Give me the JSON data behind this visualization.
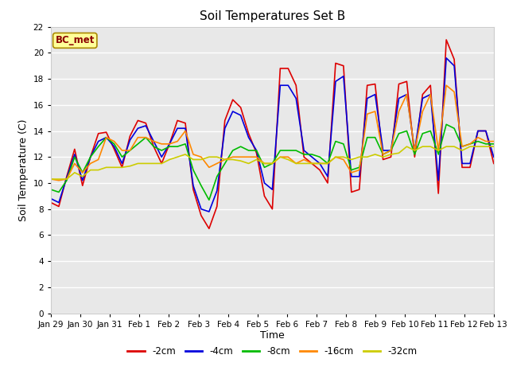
{
  "title": "Soil Temperatures Set B",
  "xlabel": "Time",
  "ylabel": "Soil Temperature (C)",
  "ylim": [
    0,
    22
  ],
  "yticks": [
    0,
    2,
    4,
    6,
    8,
    10,
    12,
    14,
    16,
    18,
    20,
    22
  ],
  "fig_bg_color": "#ffffff",
  "plot_bg_color": "#e8e8e8",
  "legend_label": "BC_met",
  "legend_box_facecolor": "#ffff99",
  "legend_box_edgecolor": "#aa8800",
  "legend_text_color": "#8b0000",
  "series_labels": [
    "-2cm",
    "-4cm",
    "-8cm",
    "-16cm",
    "-32cm"
  ],
  "series_colors": [
    "#dd0000",
    "#0000dd",
    "#00bb00",
    "#ff8800",
    "#cccc00"
  ],
  "x_labels": [
    "Jan 29",
    "Jan 30",
    "Jan 31",
    "Feb 1",
    "Feb 2",
    "Feb 3",
    "Feb 4",
    "Feb 5",
    "Feb 6",
    "Feb 7",
    "Feb 8",
    "Feb 9",
    "Feb 10",
    "Feb 11",
    "Feb 12",
    "Feb 13"
  ],
  "data_2cm": [
    8.5,
    8.2,
    10.5,
    12.6,
    9.8,
    12.0,
    13.8,
    13.9,
    12.6,
    11.2,
    13.6,
    14.8,
    14.6,
    12.8,
    11.5,
    13.0,
    14.8,
    14.6,
    9.5,
    7.5,
    6.5,
    8.2,
    14.8,
    16.4,
    15.8,
    13.8,
    12.3,
    9.0,
    8.0,
    18.8,
    18.8,
    17.5,
    12.0,
    11.5,
    11.0,
    10.0,
    19.2,
    19.0,
    9.3,
    9.5,
    17.5,
    17.6,
    11.8,
    12.0,
    17.6,
    17.8,
    12.0,
    16.8,
    17.5,
    9.2,
    21.0,
    19.5,
    11.2,
    11.2,
    14.0,
    14.0,
    11.5
  ],
  "data_4cm": [
    8.8,
    8.5,
    10.4,
    12.2,
    10.2,
    12.0,
    13.2,
    13.5,
    12.8,
    11.5,
    13.3,
    14.2,
    14.4,
    13.2,
    12.0,
    13.0,
    14.2,
    14.2,
    9.8,
    8.0,
    7.8,
    9.4,
    14.2,
    15.5,
    15.2,
    13.5,
    12.5,
    10.0,
    9.5,
    17.5,
    17.5,
    16.5,
    12.5,
    12.0,
    11.5,
    10.5,
    17.8,
    18.2,
    10.5,
    10.5,
    16.5,
    16.8,
    12.5,
    12.5,
    16.5,
    16.8,
    12.5,
    16.5,
    16.8,
    10.2,
    19.6,
    19.0,
    11.5,
    11.5,
    14.0,
    14.0,
    12.0
  ],
  "data_8cm": [
    9.5,
    9.3,
    10.2,
    12.0,
    10.8,
    12.0,
    12.8,
    13.5,
    13.0,
    12.0,
    12.5,
    13.0,
    13.5,
    12.8,
    12.5,
    12.8,
    12.8,
    13.0,
    11.0,
    9.8,
    8.7,
    10.5,
    11.5,
    12.5,
    12.8,
    12.5,
    12.5,
    11.2,
    11.5,
    12.5,
    12.5,
    12.5,
    12.2,
    12.2,
    12.0,
    11.5,
    13.2,
    13.0,
    11.0,
    11.2,
    13.5,
    13.5,
    12.2,
    12.5,
    13.8,
    14.0,
    12.2,
    13.8,
    14.0,
    12.2,
    14.5,
    14.2,
    12.8,
    13.0,
    13.2,
    13.0,
    13.0
  ],
  "data_16cm": [
    10.3,
    10.2,
    10.3,
    11.5,
    10.8,
    11.5,
    11.8,
    13.5,
    13.2,
    12.5,
    12.5,
    13.5,
    13.5,
    13.2,
    13.0,
    13.0,
    13.2,
    14.0,
    12.2,
    12.0,
    11.2,
    11.5,
    11.8,
    12.0,
    12.0,
    12.0,
    12.0,
    11.5,
    11.5,
    12.0,
    12.0,
    11.5,
    11.8,
    11.5,
    11.5,
    11.5,
    12.0,
    11.8,
    10.8,
    11.0,
    15.3,
    15.5,
    12.2,
    12.5,
    15.5,
    16.8,
    12.5,
    15.5,
    16.8,
    12.5,
    17.5,
    17.0,
    12.8,
    13.0,
    13.5,
    13.2,
    13.2
  ],
  "data_32cm": [
    10.3,
    10.3,
    10.3,
    10.8,
    10.5,
    11.0,
    11.0,
    11.2,
    11.2,
    11.2,
    11.3,
    11.5,
    11.5,
    11.5,
    11.5,
    11.8,
    12.0,
    12.2,
    11.8,
    11.8,
    12.0,
    12.0,
    11.8,
    11.8,
    11.7,
    11.5,
    11.8,
    11.5,
    11.5,
    12.0,
    11.8,
    11.5,
    11.5,
    11.5,
    11.5,
    11.5,
    12.0,
    12.0,
    11.8,
    12.0,
    12.0,
    12.2,
    12.0,
    12.2,
    12.3,
    12.8,
    12.5,
    12.8,
    12.8,
    12.5,
    12.8,
    12.8,
    12.5,
    12.8,
    12.8,
    12.8,
    12.8
  ]
}
